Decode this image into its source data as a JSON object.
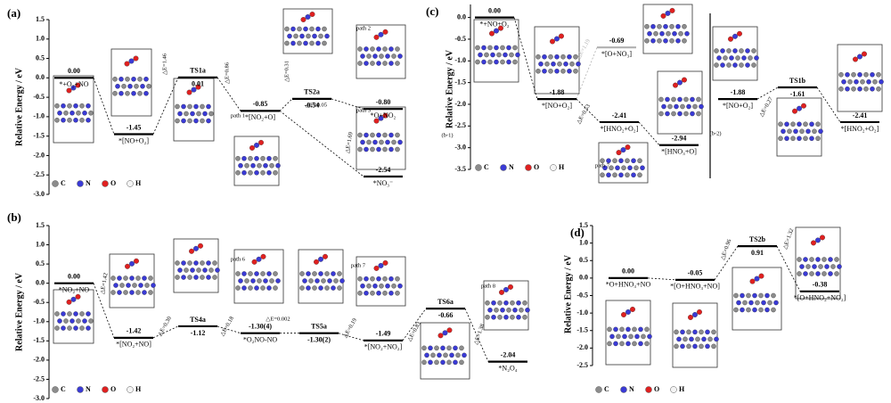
{
  "chart_data": [
    {
      "type": "energy",
      "panel": "(a)",
      "ylabel": "Relative Energy / eV",
      "ylim": [
        -3.0,
        1.5
      ],
      "yticks": [
        1.5,
        {
          "value": 1,
          "label": "1.0"
        },
        0.5,
        {
          "value": 0,
          "label": "0.0"
        },
        -0.5,
        {
          "value": -1,
          "label": "-1.0"
        },
        -1.5,
        {
          "value": -2,
          "label": "-2.0"
        },
        -2.5,
        {
          "value": -3,
          "label": "-3.0"
        }
      ],
      "categories": [
        "*+O₂+NO",
        "*[NO+O₂]",
        "TS1a",
        "*[NO₂+O]",
        "TS2a",
        "*O+NO₂",
        "*NO₃⁻"
      ],
      "values": [
        0,
        -1.45,
        0.01,
        -0.85,
        -0.54,
        -0.8,
        -2.54
      ],
      "value_labels": [
        "0.00",
        "-1.45",
        "0.01",
        "-0.85",
        "-0.54",
        "-0.80",
        "-2.54"
      ],
      "annotations": [
        "△E=1.46",
        "△E=0.86",
        "△E=0.31",
        "△E=0.05",
        "△E=1.69",
        "path 1",
        "path 2",
        "path 3"
      ],
      "legend": [
        {
          "name": "C",
          "color": "#8c8c8c"
        },
        {
          "name": "N",
          "color": "#3a3ad6"
        },
        {
          "name": "O",
          "color": "#e02020"
        },
        {
          "name": "H",
          "color": "#f4f4f4"
        }
      ]
    },
    {
      "type": "energy",
      "panel": "(b)",
      "ylabel": "Relative Energy / eV",
      "ylim": [
        -3.0,
        1.5
      ],
      "yticks": [
        1.5,
        {
          "value": 1,
          "label": "1.0"
        },
        0.5,
        {
          "value": 0,
          "label": "0.0"
        },
        -0.5,
        {
          "value": -1,
          "label": "-1.0"
        },
        -1.5,
        {
          "value": -2,
          "label": "-2.0"
        },
        -2.5,
        {
          "value": -3,
          "label": "-3.0"
        }
      ],
      "categories": [
        "*NO₂+NO",
        "*[NO₂+NO]",
        "TS4a",
        "*O₂NO-NO",
        "TS5a",
        "*[NO₂+NO₂]",
        "TS6a",
        "*N₂O₄"
      ],
      "values": [
        0,
        -1.42,
        -1.12,
        -1.3,
        -1.3,
        -1.49,
        -0.66,
        -2.04
      ],
      "value_labels": [
        "0.00",
        "-1.42",
        "-1.12",
        "-1.30(4)",
        "-1.30(2)",
        "-1.49",
        "-0.66",
        "-2.04"
      ],
      "annotations": [
        "△E=1.42",
        "△E=0.30",
        "△E=0.18",
        "△E=0.002",
        "△E=0.19",
        "△E=0.83",
        "△E=1.38",
        "path 6",
        "path 7",
        "path 8"
      ],
      "legend": [
        {
          "name": "C",
          "color": "#8c8c8c"
        },
        {
          "name": "N",
          "color": "#3a3ad6"
        },
        {
          "name": "O",
          "color": "#e02020"
        },
        {
          "name": "H",
          "color": "#f4f4f4"
        }
      ]
    },
    {
      "type": "energy",
      "panel": "(c)",
      "ylabel": "Relative Energy / eV",
      "ylim": [
        -3.5,
        0.3
      ],
      "yticks": [
        {
          "value": 0,
          "label": "0.0"
        },
        -0.5,
        {
          "value": -1,
          "label": "-1.0"
        },
        -1.5,
        {
          "value": -2,
          "label": "-2.0"
        },
        -2.5,
        {
          "value": -3,
          "label": "-3.0"
        },
        -3.5
      ],
      "categories": [
        "*+NO+O₂",
        "*[NO+O₂]",
        "*[O+NO₃]",
        "*[HNO₂+O₂]",
        "*[HNO₃+O]",
        "*[NO+O₂]",
        "TS1b",
        "*[HNO₂+O₂]"
      ],
      "values": [
        0,
        -1.88,
        -0.69,
        -2.41,
        -2.94,
        -1.88,
        -1.61,
        -2.41
      ],
      "value_labels": [
        "0.00",
        "-1.88",
        "-0.69",
        "-2.41",
        "-2.94",
        "-1.88",
        "-1.61",
        "-2.41"
      ],
      "colors": [
        "#000000",
        "#000000",
        "#b0b0b0",
        "#000000",
        "#000000",
        "#000000",
        "#000000",
        "#000000"
      ],
      "annotations": [
        "△E=1.19",
        "△E=0.53",
        "△E=0.27",
        "(b-1)",
        "(b-2)",
        "path 7"
      ],
      "legend": [
        {
          "name": "C",
          "color": "#8c8c8c"
        },
        {
          "name": "N",
          "color": "#3a3ad6"
        },
        {
          "name": "O",
          "color": "#e02020"
        },
        {
          "name": "H",
          "color": "#f4f4f4"
        }
      ]
    },
    {
      "type": "energy",
      "panel": "(d)",
      "ylabel": "Relative Energy / eV",
      "ylim": [
        -2.5,
        1.5
      ],
      "yticks": [
        1.5,
        {
          "value": 1,
          "label": "1.0"
        },
        0.5,
        {
          "value": 0,
          "label": "0.0"
        },
        -0.5,
        {
          "value": -1,
          "label": "-1.0"
        },
        -1.5,
        {
          "value": -2,
          "label": "-2.0"
        },
        -2.5
      ],
      "categories": [
        "*O+HNO₃+NO",
        "*[O+HNO₃+NO]",
        "TS2b",
        "*[O+HNO₂+NO₂]"
      ],
      "values": [
        0,
        -0.05,
        0.91,
        -0.38
      ],
      "value_labels": [
        "0.00",
        "-0.05",
        "0.91",
        "-0.38"
      ],
      "annotations": [
        "△E=0.96",
        "△E=1.32"
      ],
      "legend": [
        {
          "name": "C",
          "color": "#8c8c8c"
        },
        {
          "name": "N",
          "color": "#3a3ad6"
        },
        {
          "name": "O",
          "color": "#e02020"
        },
        {
          "name": "H",
          "color": "#f4f4f4"
        }
      ]
    }
  ]
}
